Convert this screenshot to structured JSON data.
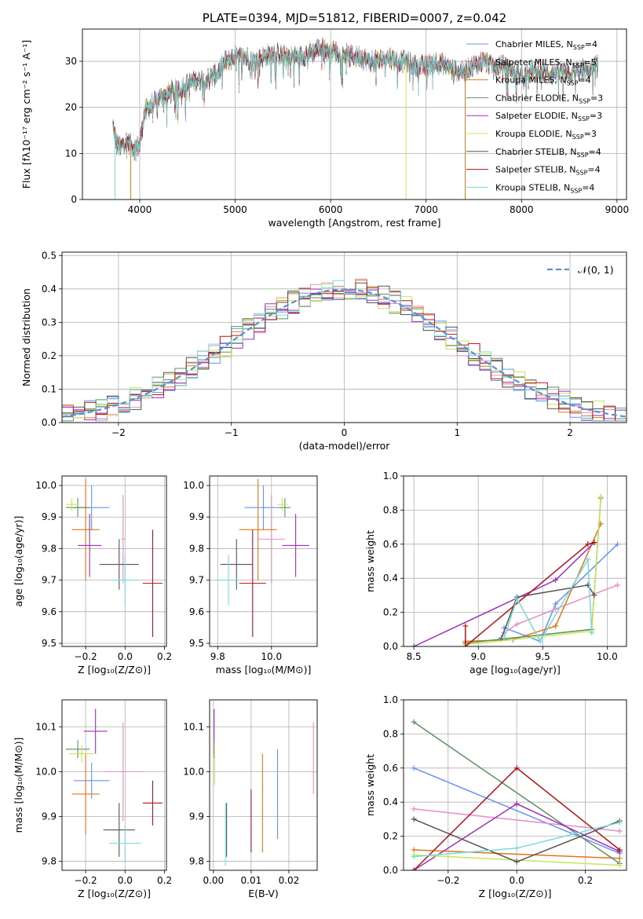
{
  "colors": {
    "chabrier_miles": "#6495ed",
    "salpeter_miles": "#e58dc6",
    "kroupa_miles": "#e0761a",
    "chabrier_elodie": "#5e8f5e",
    "salpeter_elodie": "#a12fbf",
    "kroupa_elodie": "#c8e65a",
    "chabrier_stelib": "#555555",
    "salpeter_stelib": "#b31319",
    "kroupa_stelib": "#79dada"
  },
  "chart_data": [
    {
      "id": "spectrum",
      "type": "line",
      "title": "PLATE=0394, MJD=51812, FIBERID=0007, z=0.042",
      "xlabel": "wavelength [Angstrom, rest frame]",
      "ylabel": "Flux [fλ10⁻¹⁷ erg cm⁻² s⁻¹ A⁻¹]",
      "xlim": [
        3400,
        9100
      ],
      "ylim": [
        0,
        37
      ],
      "xticks": [
        "4000",
        "5000",
        "6000",
        "7000",
        "8000",
        "9000"
      ],
      "yticks": [
        "0",
        "10",
        "20",
        "30"
      ],
      "legend_position": "top-right",
      "legend": [
        "Chabrier MILES, N_SSP=4",
        "Salpeter MILES, N_SSP=5",
        "Kroupa MILES, N_SSP=4",
        "Chabrier ELODIE, N_SSP=3",
        "Salpeter ELODIE, N_SSP=3",
        "Kroupa ELODIE, N_SSP=3",
        "Chabrier STELIB, N_SSP=4",
        "Salpeter STELIB, N_SSP=4",
        "Kroupa STELIB, N_SSP=4"
      ],
      "envelope": {
        "x": [
          3720,
          3760,
          3800,
          3850,
          3900,
          3950,
          4000,
          4050,
          4100,
          4200,
          4300,
          4400,
          4500,
          4600,
          4700,
          4800,
          4900,
          5000,
          5100,
          5200,
          5300,
          5400,
          5500,
          5600,
          5700,
          5800,
          5900,
          6000,
          6100,
          6200,
          6300,
          6400,
          6500,
          6600,
          6700,
          6800,
          6900,
          7000,
          7100,
          7200,
          7300,
          7400,
          7500,
          7600,
          7700,
          7800,
          7900,
          8000,
          8100,
          8200,
          8300,
          8400,
          8500,
          8600,
          8700,
          8800
        ],
        "y": [
          16,
          12,
          11,
          13,
          12,
          11,
          12,
          19,
          20,
          22,
          23,
          24,
          25,
          26,
          26,
          27,
          30,
          31,
          31,
          30,
          31,
          32,
          31,
          31,
          31,
          32,
          33,
          32,
          32,
          31,
          31,
          30,
          30,
          31,
          30,
          30,
          29,
          29,
          30,
          29,
          28,
          28,
          29,
          30,
          29,
          29,
          28,
          27,
          28,
          28,
          27,
          28,
          27,
          28,
          28,
          29
        ]
      },
      "drops": [
        {
          "x": 3740,
          "y": 0,
          "series": "kroupa_stelib"
        },
        {
          "x": 3905,
          "y": 0,
          "series": "kroupa_miles"
        },
        {
          "x": 6790,
          "y": 0,
          "series": "kroupa_elodie"
        },
        {
          "x": 7410,
          "y": 0,
          "series": "kroupa_miles"
        }
      ]
    },
    {
      "id": "residuals",
      "type": "bar",
      "xlabel": "(data-model)/error",
      "ylabel": "Normed distribution",
      "xlim": [
        -2.5,
        2.5
      ],
      "ylim": [
        0,
        0.51
      ],
      "xticks": [
        "−2",
        "−1",
        "0",
        "1",
        "2"
      ],
      "yticks": [
        "0.0",
        "0.1",
        "0.2",
        "0.3",
        "0.4",
        "0.5"
      ],
      "legend_position": "top-right",
      "legend": [
        "𝒩(0, 1)"
      ],
      "bin_width": 0.1,
      "bin_start": -2.5,
      "bin_count": 50
    },
    {
      "id": "age_vs_z",
      "type": "scatter",
      "xlabel": "Z [log₁₀(Z/Z⊙)]",
      "ylabel": "age  [log₁₀(age/yr)]",
      "xlim": [
        -0.32,
        0.21
      ],
      "ylim": [
        9.49,
        10.03
      ],
      "xticks": [
        "−0.2",
        "0.0",
        "0.2"
      ],
      "yticks": [
        "9.5",
        "9.6",
        "9.7",
        "9.8",
        "9.9",
        "10.0"
      ],
      "points": [
        {
          "series": "chabrier_miles",
          "x": -0.17,
          "y": 9.93,
          "xerr": 0.09,
          "yerr": 0.07
        },
        {
          "series": "salpeter_miles",
          "x": -0.01,
          "y": 9.83,
          "xerr": 0.01,
          "yerr": 0.14
        },
        {
          "series": "kroupa_miles",
          "x": -0.2,
          "y": 9.86,
          "xerr": 0.07,
          "yerr": 0.16
        },
        {
          "series": "chabrier_elodie",
          "x": -0.24,
          "y": 9.93,
          "xerr": 0.06,
          "yerr": 0.03
        },
        {
          "series": "salpeter_elodie",
          "x": -0.18,
          "y": 9.81,
          "xerr": 0.06,
          "yerr": 0.1
        },
        {
          "series": "kroupa_elodie",
          "x": -0.27,
          "y": 9.94,
          "xerr": 0.03,
          "yerr": 0.02
        },
        {
          "series": "chabrier_stelib",
          "x": -0.03,
          "y": 9.75,
          "xerr": 0.1,
          "yerr": 0.08
        },
        {
          "series": "salpeter_stelib",
          "x": 0.14,
          "y": 9.69,
          "xerr": 0.05,
          "yerr": 0.17
        },
        {
          "series": "kroupa_stelib",
          "x": 0.0,
          "y": 9.7,
          "xerr": 0.07,
          "yerr": 0.08
        }
      ]
    },
    {
      "id": "age_vs_mass",
      "type": "scatter",
      "xlabel": "mass [log₁₀(M/M⊙)]",
      "ylabel": "",
      "xlim": [
        9.77,
        10.17
      ],
      "ylim": [
        9.49,
        10.03
      ],
      "xticks": [
        "9.8",
        "10.0"
      ],
      "yticks": [
        "9.5",
        "9.6",
        "9.7",
        "9.8",
        "9.9",
        "10.0"
      ],
      "points": [
        {
          "series": "chabrier_miles",
          "x": 9.97,
          "y": 9.93,
          "xerr": 0.07,
          "yerr": 0.07
        },
        {
          "series": "salpeter_miles",
          "x": 10.0,
          "y": 9.83,
          "xerr": 0.05,
          "yerr": 0.14
        },
        {
          "series": "kroupa_miles",
          "x": 9.95,
          "y": 9.86,
          "xerr": 0.07,
          "yerr": 0.16
        },
        {
          "series": "chabrier_elodie",
          "x": 10.05,
          "y": 9.93,
          "xerr": 0.02,
          "yerr": 0.03
        },
        {
          "series": "salpeter_elodie",
          "x": 10.09,
          "y": 9.81,
          "xerr": 0.05,
          "yerr": 0.1
        },
        {
          "series": "kroupa_elodie",
          "x": 10.04,
          "y": 9.94,
          "xerr": 0.02,
          "yerr": 0.02
        },
        {
          "series": "chabrier_stelib",
          "x": 9.87,
          "y": 9.75,
          "xerr": 0.06,
          "yerr": 0.08
        },
        {
          "series": "salpeter_stelib",
          "x": 9.93,
          "y": 9.69,
          "xerr": 0.05,
          "yerr": 0.17
        },
        {
          "series": "kroupa_stelib",
          "x": 9.84,
          "y": 9.7,
          "xerr": 0.04,
          "yerr": 0.08
        }
      ]
    },
    {
      "id": "weight_vs_age",
      "type": "line",
      "xlabel": "age  [log₁₀(age/yr)]",
      "ylabel": "mass weight",
      "xlim": [
        8.42,
        10.15
      ],
      "ylim": [
        0,
        1.0
      ],
      "xticks": [
        "8.5",
        "9.0",
        "9.5",
        "10.0"
      ],
      "yticks": [
        "0.0",
        "0.2",
        "0.4",
        "0.6",
        "0.8",
        "1.0"
      ],
      "series": [
        {
          "key": "chabrier_miles",
          "x": [
            9.2,
            9.48,
            9.6,
            10.08
          ],
          "y": [
            0.11,
            0.03,
            0.25,
            0.6
          ]
        },
        {
          "key": "salpeter_miles",
          "x": [
            9.2,
            9.3,
            9.6,
            10.08
          ],
          "y": [
            0.08,
            0.13,
            0.22,
            0.36
          ]
        },
        {
          "key": "kroupa_miles",
          "x": [
            8.9,
            9.27,
            9.6,
            9.95
          ],
          "y": [
            0.03,
            0.04,
            0.12,
            0.72
          ]
        },
        {
          "key": "chabrier_elodie",
          "x": [
            8.9,
            9.88,
            9.95
          ],
          "y": [
            0.02,
            0.1,
            0.87
          ]
        },
        {
          "key": "salpeter_elodie",
          "x": [
            8.5,
            9.6,
            9.9
          ],
          "y": [
            0.0,
            0.39,
            0.61
          ]
        },
        {
          "key": "kroupa_elodie",
          "x": [
            8.9,
            9.88,
            9.95
          ],
          "y": [
            0.01,
            0.09,
            0.88
          ]
        },
        {
          "key": "chabrier_stelib",
          "x": [
            9.18,
            9.3,
            9.85,
            9.9
          ],
          "y": [
            0.05,
            0.29,
            0.36,
            0.3
          ]
        },
        {
          "key": "salpeter_stelib",
          "x": [
            8.9,
            8.9,
            9.85,
            9.9
          ],
          "y": [
            0.12,
            0.0,
            0.6,
            0.61
          ]
        },
        {
          "key": "kroupa_stelib",
          "x": [
            9.2,
            9.3,
            9.48,
            9.85,
            9.88
          ],
          "y": [
            0.05,
            0.28,
            0.03,
            0.51,
            0.08
          ]
        }
      ]
    },
    {
      "id": "mass_vs_z",
      "type": "scatter",
      "xlabel": "Z [log₁₀(Z/Z⊙)]",
      "ylabel": "mass [log₁₀(M/M⊙)]",
      "xlim": [
        -0.32,
        0.21
      ],
      "ylim": [
        9.78,
        10.16
      ],
      "xticks": [
        "−0.2",
        "0.0",
        "0.2"
      ],
      "yticks": [
        "9.8",
        "9.9",
        "10.0",
        "10.1"
      ],
      "points": [
        {
          "series": "chabrier_miles",
          "x": -0.17,
          "y": 9.98,
          "xerr": 0.09,
          "yerr": 0.04
        },
        {
          "series": "salpeter_miles",
          "x": -0.01,
          "y": 10.0,
          "xerr": 0.1,
          "yerr": 0.11
        },
        {
          "series": "kroupa_miles",
          "x": -0.2,
          "y": 9.95,
          "xerr": 0.07,
          "yerr": 0.09
        },
        {
          "series": "chabrier_elodie",
          "x": -0.24,
          "y": 10.05,
          "xerr": 0.06,
          "yerr": 0.02
        },
        {
          "series": "salpeter_elodie",
          "x": -0.15,
          "y": 10.09,
          "xerr": 0.06,
          "yerr": 0.05
        },
        {
          "series": "kroupa_elodie",
          "x": -0.22,
          "y": 10.04,
          "xerr": 0.06,
          "yerr": 0.02
        },
        {
          "series": "chabrier_stelib",
          "x": -0.03,
          "y": 9.87,
          "xerr": 0.08,
          "yerr": 0.06
        },
        {
          "series": "salpeter_stelib",
          "x": 0.14,
          "y": 9.93,
          "xerr": 0.05,
          "yerr": 0.05
        },
        {
          "series": "kroupa_stelib",
          "x": 0.0,
          "y": 9.84,
          "xerr": 0.08,
          "yerr": 0.04
        }
      ]
    },
    {
      "id": "mass_vs_ebv",
      "type": "scatter",
      "xlabel": "E(B-V)",
      "ylabel": "",
      "xlim": [
        -0.001,
        0.0275
      ],
      "ylim": [
        9.78,
        10.16
      ],
      "xticks": [
        "0.00",
        "0.01",
        "0.02"
      ],
      "yticks": [
        "9.8",
        "9.9",
        "10.0",
        "10.1"
      ],
      "points": [
        {
          "series": "chabrier_miles",
          "x": 0.017,
          "y": 9.95,
          "xerr": 0,
          "yerr": 0.1
        },
        {
          "series": "salpeter_miles",
          "x": 0.0265,
          "y": 10.03,
          "xerr": 0,
          "yerr": 0.08
        },
        {
          "series": "kroupa_miles",
          "x": 0.013,
          "y": 9.93,
          "xerr": 0,
          "yerr": 0.11
        },
        {
          "series": "chabrier_elodie",
          "x": 0.0002,
          "y": 10.05,
          "xerr": 0,
          "yerr": 0.02
        },
        {
          "series": "salpeter_elodie",
          "x": 0.0002,
          "y": 10.09,
          "xerr": 0,
          "yerr": 0.05
        },
        {
          "series": "kroupa_elodie",
          "x": 0.0003,
          "y": 10.02,
          "xerr": 0,
          "yerr": 0.05
        },
        {
          "series": "chabrier_stelib",
          "x": 0.0035,
          "y": 9.87,
          "xerr": 0,
          "yerr": 0.06
        },
        {
          "series": "salpeter_stelib",
          "x": 0.01,
          "y": 9.89,
          "xerr": 0,
          "yerr": 0.07
        },
        {
          "series": "kroupa_stelib",
          "x": 0.0032,
          "y": 9.86,
          "xerr": 0,
          "yerr": 0.07
        }
      ]
    },
    {
      "id": "weight_vs_z",
      "type": "line",
      "xlabel": "Z [log₁₀(Z/Z⊙)]",
      "ylabel": "mass weight",
      "xlim": [
        -0.33,
        0.32
      ],
      "ylim": [
        0,
        1.0
      ],
      "xticks": [
        "−0.2",
        "0.0",
        "0.2"
      ],
      "yticks": [
        "0.0",
        "0.2",
        "0.4",
        "0.6",
        "0.8",
        "1.0"
      ],
      "series": [
        {
          "key": "chabrier_miles",
          "x": [
            -0.3,
            0.3
          ],
          "y": [
            0.6,
            0.1
          ]
        },
        {
          "key": "salpeter_miles",
          "x": [
            -0.3,
            0.3
          ],
          "y": [
            0.36,
            0.23
          ]
        },
        {
          "key": "kroupa_miles",
          "x": [
            -0.3,
            0.3
          ],
          "y": [
            0.12,
            0.07
          ]
        },
        {
          "key": "chabrier_elodie",
          "x": [
            -0.3,
            0.3
          ],
          "y": [
            0.87,
            0.04
          ]
        },
        {
          "key": "salpeter_elodie",
          "x": [
            -0.3,
            0.0,
            0.3
          ],
          "y": [
            0.0,
            0.39,
            0.11
          ]
        },
        {
          "key": "kroupa_elodie",
          "x": [
            -0.3,
            0.3
          ],
          "y": [
            0.09,
            0.03
          ]
        },
        {
          "key": "chabrier_stelib",
          "x": [
            -0.3,
            0.0,
            0.3
          ],
          "y": [
            0.3,
            0.05,
            0.29
          ]
        },
        {
          "key": "salpeter_stelib",
          "x": [
            -0.3,
            0.0,
            0.3
          ],
          "y": [
            0.0,
            0.6,
            0.12
          ]
        },
        {
          "key": "kroupa_stelib",
          "x": [
            -0.3,
            0.0,
            0.3
          ],
          "y": [
            0.08,
            0.13,
            0.28
          ]
        }
      ]
    }
  ]
}
